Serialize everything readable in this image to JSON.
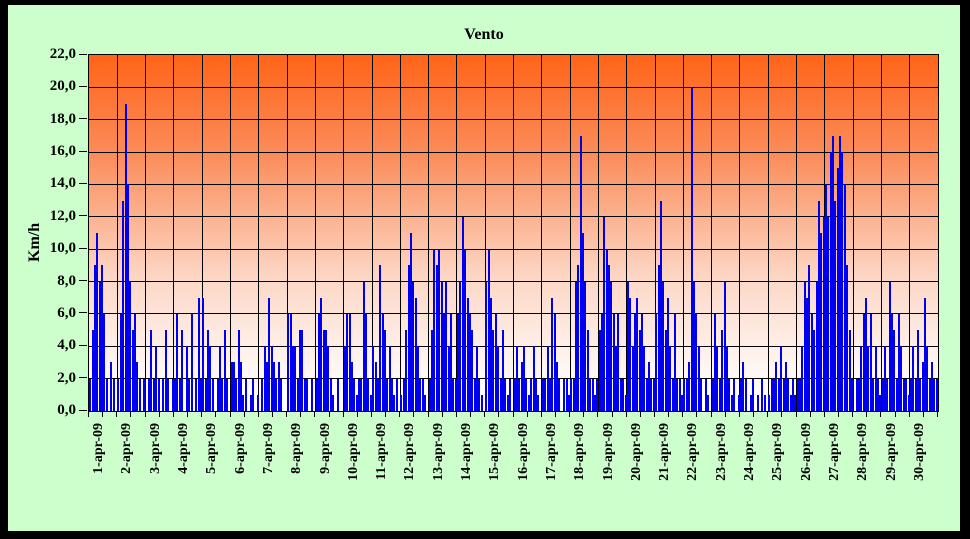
{
  "window": {
    "outer_border_color": "#000000",
    "background_color": "#ccffcc"
  },
  "chart_data": {
    "type": "bar",
    "title": "Vento",
    "ylabel": "Km/h",
    "xlabel": "",
    "ylim": [
      0,
      22
    ],
    "ytick_step": 2,
    "ytick_labels": [
      "0,0",
      "2,0",
      "4,0",
      "6,0",
      "8,0",
      "10,0",
      "12,0",
      "14,0",
      "16,0",
      "18,0",
      "20,0",
      "22,0"
    ],
    "categories": [
      "1-apr-09",
      "2-apr-09",
      "3-apr-09",
      "4-apr-09",
      "5-apr-09",
      "6-apr-09",
      "7-apr-09",
      "8-apr-09",
      "9-apr-09",
      "10-apr-09",
      "11-apr-09",
      "12-apr-09",
      "13-apr-09",
      "14-apr-09",
      "15-apr-09",
      "16-apr-09",
      "17-apr-09",
      "18-apr-09",
      "19-apr-09",
      "20-apr-09",
      "21-apr-09",
      "22-apr-09",
      "23-apr-09",
      "24-apr-09",
      "25-apr-09",
      "26-apr-09",
      "27-apr-09",
      "28-apr-09",
      "29-apr-09",
      "30-apr-09"
    ],
    "x_minor_ticks_per_category": 2,
    "grid": true,
    "legend": "none",
    "bar_color": "#0000f0",
    "gridline_color": "#000000",
    "plot_gradient_top": "#ff6418",
    "plot_gradient_bottom": "#ffffff",
    "samples_per_category": 12,
    "series": [
      {
        "name": "Vento (Km/h)",
        "values_by_day": [
          [
            2,
            5,
            9,
            11,
            8,
            9,
            6,
            2,
            0,
            3,
            2,
            0
          ],
          [
            2,
            6,
            13,
            19,
            14,
            8,
            5,
            6,
            3,
            2,
            0,
            2
          ],
          [
            0,
            2,
            5,
            2,
            4,
            2,
            0,
            2,
            5,
            2,
            0,
            2
          ],
          [
            2,
            6,
            2,
            5,
            0,
            4,
            2,
            6,
            0,
            2,
            7,
            2
          ],
          [
            7,
            2,
            5,
            4,
            2,
            0,
            2,
            4,
            2,
            5,
            2,
            0
          ],
          [
            3,
            3,
            2,
            5,
            3,
            1,
            2,
            0,
            1,
            2,
            0,
            1
          ],
          [
            0,
            2,
            4,
            3,
            7,
            4,
            3,
            2,
            3,
            2,
            0,
            0
          ],
          [
            6,
            6,
            4,
            4,
            2,
            5,
            5,
            2,
            2,
            0,
            2,
            0
          ],
          [
            2,
            6,
            7,
            5,
            5,
            4,
            2,
            1,
            0,
            2,
            0,
            0
          ],
          [
            4,
            6,
            6,
            3,
            2,
            1,
            2,
            2,
            8,
            6,
            2,
            1
          ],
          [
            4,
            3,
            2,
            9,
            6,
            5,
            2,
            4,
            2,
            1,
            2,
            0
          ],
          [
            1,
            2,
            5,
            9,
            11,
            8,
            7,
            4,
            2,
            2,
            1,
            0
          ],
          [
            2,
            5,
            10,
            9,
            10,
            8,
            6,
            8,
            4,
            6,
            2,
            2
          ],
          [
            6,
            8,
            12,
            10,
            7,
            6,
            5,
            2,
            4,
            2,
            1,
            0
          ],
          [
            8,
            10,
            7,
            5,
            6,
            4,
            2,
            5,
            2,
            1,
            2,
            0
          ],
          [
            2,
            4,
            2,
            3,
            4,
            2,
            1,
            2,
            4,
            2,
            1,
            0
          ],
          [
            2,
            2,
            4,
            2,
            7,
            6,
            3,
            2,
            0,
            2,
            2,
            1
          ],
          [
            2,
            2,
            8,
            9,
            17,
            11,
            8,
            5,
            2,
            2,
            1,
            2
          ],
          [
            5,
            6,
            12,
            10,
            9,
            8,
            6,
            4,
            6,
            2,
            2,
            1
          ],
          [
            8,
            7,
            4,
            6,
            7,
            5,
            6,
            4,
            2,
            3,
            2,
            2
          ],
          [
            6,
            9,
            13,
            8,
            5,
            7,
            4,
            2,
            6,
            2,
            2,
            1
          ],
          [
            2,
            2,
            3,
            20,
            8,
            6,
            4,
            2,
            0,
            2,
            1,
            0
          ],
          [
            2,
            6,
            4,
            2,
            5,
            8,
            4,
            2,
            1,
            2,
            0,
            1
          ],
          [
            2,
            3,
            2,
            0,
            1,
            2,
            0,
            1,
            0,
            2,
            1,
            0
          ],
          [
            1,
            2,
            2,
            3,
            2,
            4,
            2,
            3,
            2,
            1,
            2,
            1
          ],
          [
            2,
            2,
            4,
            8,
            7,
            9,
            6,
            5,
            8,
            13,
            11,
            12
          ],
          [
            14,
            12,
            16,
            17,
            13,
            15,
            17,
            16,
            14,
            9,
            5,
            2
          ],
          [
            0,
            2,
            2,
            4,
            6,
            7,
            4,
            6,
            2,
            4,
            2,
            1
          ],
          [
            2,
            4,
            2,
            8,
            6,
            5,
            2,
            6,
            4,
            2,
            2,
            1
          ],
          [
            2,
            4,
            2,
            5,
            2,
            3,
            7,
            4,
            2,
            3,
            2,
            2
          ]
        ]
      }
    ]
  }
}
